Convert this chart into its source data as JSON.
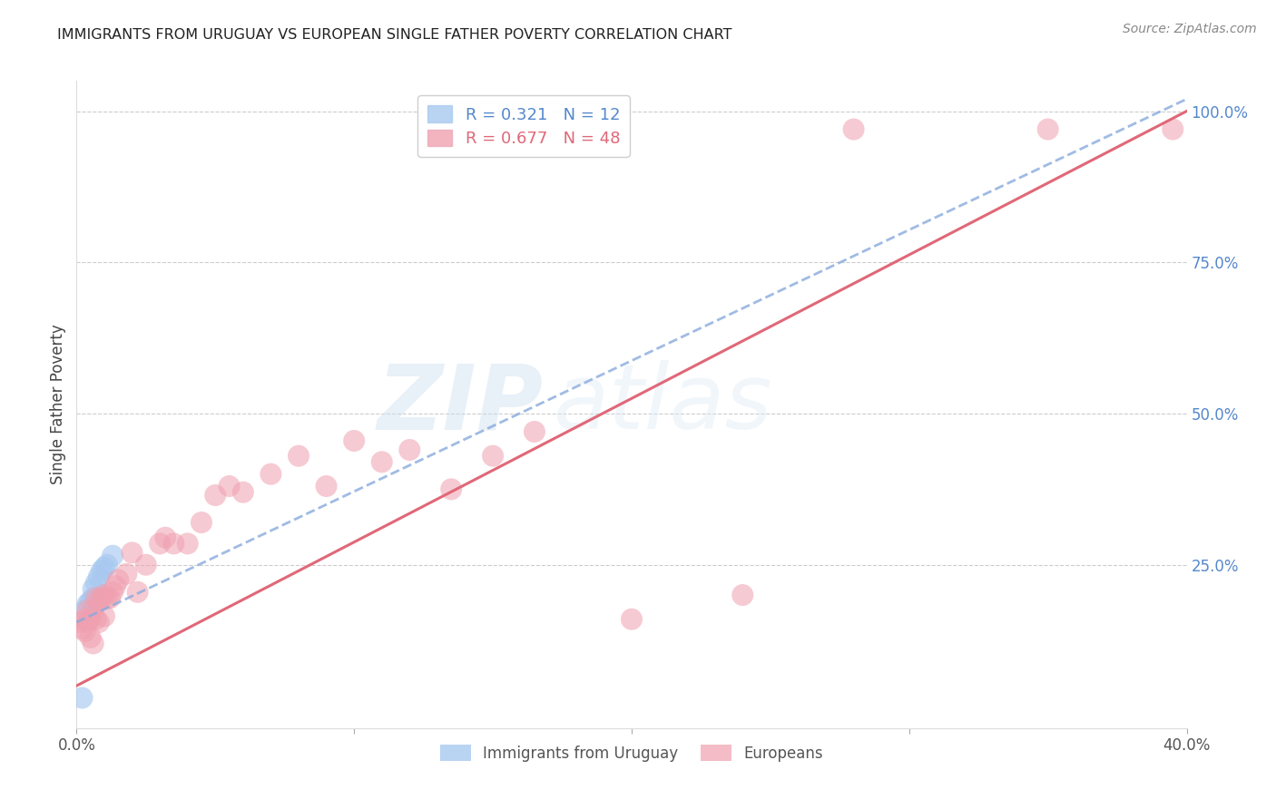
{
  "title": "IMMIGRANTS FROM URUGUAY VS EUROPEAN SINGLE FATHER POVERTY CORRELATION CHART",
  "source": "Source: ZipAtlas.com",
  "ylabel": "Single Father Poverty",
  "watermark_zip": "ZIP",
  "watermark_atlas": "atlas",
  "x_ticks": [
    0.0,
    0.1,
    0.2,
    0.3,
    0.4
  ],
  "x_tick_labels": [
    "0.0%",
    "",
    "",
    "",
    "40.0%"
  ],
  "y_ticks_right": [
    0.0,
    0.25,
    0.5,
    0.75,
    1.0
  ],
  "y_tick_labels_right": [
    "",
    "25.0%",
    "50.0%",
    "75.0%",
    "100.0%"
  ],
  "legend_blue_r": "R = 0.321",
  "legend_blue_n": "N = 12",
  "legend_pink_r": "R = 0.677",
  "legend_pink_n": "N = 48",
  "legend_label_blue": "Immigrants from Uruguay",
  "legend_label_pink": "Europeans",
  "blue_color": "#a8c8f0",
  "pink_color": "#f0a0b0",
  "blue_line_color": "#88aadd",
  "pink_line_color": "#e06878",
  "blue_x": [
    0.002,
    0.003,
    0.004,
    0.005,
    0.006,
    0.006,
    0.007,
    0.008,
    0.009,
    0.01,
    0.011,
    0.013
  ],
  "blue_y": [
    0.03,
    0.175,
    0.185,
    0.19,
    0.195,
    0.21,
    0.22,
    0.23,
    0.24,
    0.245,
    0.25,
    0.265
  ],
  "pink_x": [
    0.001,
    0.002,
    0.003,
    0.003,
    0.004,
    0.004,
    0.005,
    0.005,
    0.006,
    0.006,
    0.007,
    0.007,
    0.008,
    0.008,
    0.009,
    0.01,
    0.01,
    0.011,
    0.012,
    0.013,
    0.014,
    0.015,
    0.018,
    0.02,
    0.022,
    0.025,
    0.03,
    0.032,
    0.035,
    0.04,
    0.045,
    0.05,
    0.055,
    0.06,
    0.07,
    0.08,
    0.09,
    0.1,
    0.11,
    0.12,
    0.135,
    0.15,
    0.165,
    0.2,
    0.24,
    0.28,
    0.35,
    0.395
  ],
  "pink_y": [
    0.155,
    0.145,
    0.14,
    0.16,
    0.155,
    0.175,
    0.13,
    0.16,
    0.12,
    0.175,
    0.16,
    0.195,
    0.155,
    0.19,
    0.195,
    0.165,
    0.2,
    0.195,
    0.195,
    0.205,
    0.215,
    0.225,
    0.235,
    0.27,
    0.205,
    0.25,
    0.285,
    0.295,
    0.285,
    0.285,
    0.32,
    0.365,
    0.38,
    0.37,
    0.4,
    0.43,
    0.38,
    0.455,
    0.42,
    0.44,
    0.375,
    0.43,
    0.47,
    0.16,
    0.2,
    0.97,
    0.97,
    0.97
  ],
  "blue_line_x0": 0.0,
  "blue_line_x1": 0.4,
  "pink_line_x0": 0.0,
  "pink_line_x1": 0.4,
  "xlim": [
    0.0,
    0.4
  ],
  "ylim": [
    -0.02,
    1.05
  ]
}
